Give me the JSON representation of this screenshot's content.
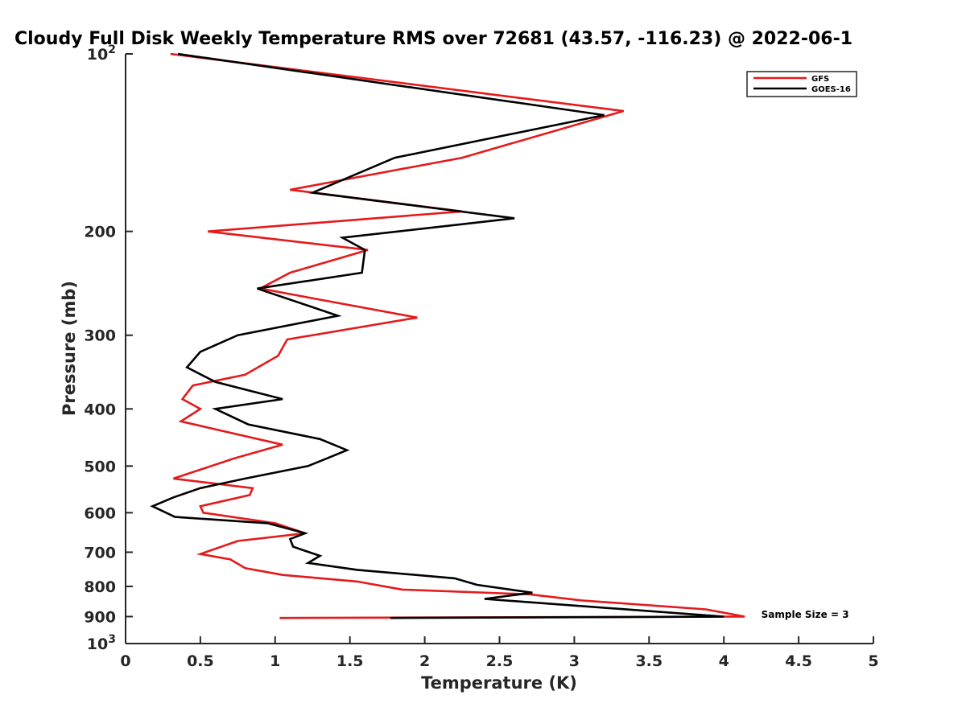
{
  "chart_data": {
    "type": "line",
    "title": "Cloudy Full Disk Weekly Temperature RMS over 72681 (43.57, -116.23) @ 2022-06-1",
    "xlabel": "Temperature (K)",
    "ylabel": "Pressure (mb)",
    "xlim": [
      0,
      5
    ],
    "ylim": [
      100,
      1000
    ],
    "y_scale": "log",
    "y_reversed": true,
    "grid": false,
    "legend_position": "top-right",
    "x_ticks": [
      {
        "value": 0,
        "label": "0"
      },
      {
        "value": 0.5,
        "label": "0.5"
      },
      {
        "value": 1,
        "label": "1"
      },
      {
        "value": 1.5,
        "label": "1.5"
      },
      {
        "value": 2,
        "label": "2"
      },
      {
        "value": 2.5,
        "label": "2.5"
      },
      {
        "value": 3,
        "label": "3"
      },
      {
        "value": 3.5,
        "label": "3.5"
      },
      {
        "value": 4,
        "label": "4"
      },
      {
        "value": 4.5,
        "label": "4.5"
      },
      {
        "value": 5,
        "label": "5"
      }
    ],
    "y_ticks": [
      {
        "value": 100,
        "base": "10",
        "exp": "2"
      },
      {
        "value": 200,
        "base": "200",
        "exp": ""
      },
      {
        "value": 300,
        "base": "300",
        "exp": ""
      },
      {
        "value": 400,
        "base": "400",
        "exp": ""
      },
      {
        "value": 500,
        "base": "500",
        "exp": ""
      },
      {
        "value": 600,
        "base": "600",
        "exp": ""
      },
      {
        "value": 700,
        "base": "700",
        "exp": ""
      },
      {
        "value": 800,
        "base": "800",
        "exp": ""
      },
      {
        "value": 900,
        "base": "900",
        "exp": ""
      },
      {
        "value": 1000,
        "base": "10",
        "exp": "3"
      }
    ],
    "series": [
      {
        "name": "GFS",
        "color": "#e41a1c",
        "points": [
          [
            0.3,
            100
          ],
          [
            3.33,
            125
          ],
          [
            2.25,
            150
          ],
          [
            1.1,
            170
          ],
          [
            2.25,
            185
          ],
          [
            0.55,
            200
          ],
          [
            1.62,
            215
          ],
          [
            1.1,
            235
          ],
          [
            0.9,
            250
          ],
          [
            1.95,
            280
          ],
          [
            1.08,
            305
          ],
          [
            1.02,
            325
          ],
          [
            0.8,
            350
          ],
          [
            0.45,
            365
          ],
          [
            0.38,
            385
          ],
          [
            0.5,
            400
          ],
          [
            0.37,
            420
          ],
          [
            1.05,
            460
          ],
          [
            0.73,
            485
          ],
          [
            0.32,
            525
          ],
          [
            0.85,
            545
          ],
          [
            0.83,
            560
          ],
          [
            0.5,
            585
          ],
          [
            0.52,
            600
          ],
          [
            1.0,
            625
          ],
          [
            1.2,
            650
          ],
          [
            0.75,
            670
          ],
          [
            0.5,
            705
          ],
          [
            0.7,
            720
          ],
          [
            0.8,
            745
          ],
          [
            1.05,
            765
          ],
          [
            1.55,
            785
          ],
          [
            1.85,
            810
          ],
          [
            2.7,
            825
          ],
          [
            3.05,
            845
          ],
          [
            3.88,
            875
          ],
          [
            4.14,
            900
          ],
          [
            1.03,
            905
          ]
        ]
      },
      {
        "name": "GOES-16",
        "color": "#000000",
        "points": [
          [
            0.35,
            100
          ],
          [
            3.2,
            127
          ],
          [
            1.8,
            150
          ],
          [
            1.25,
            172
          ],
          [
            2.6,
            190
          ],
          [
            1.45,
            205
          ],
          [
            1.6,
            215
          ],
          [
            1.58,
            235
          ],
          [
            0.88,
            250
          ],
          [
            1.42,
            278
          ],
          [
            0.75,
            300
          ],
          [
            0.5,
            320
          ],
          [
            0.41,
            340
          ],
          [
            0.6,
            360
          ],
          [
            1.05,
            385
          ],
          [
            0.6,
            400
          ],
          [
            0.82,
            425
          ],
          [
            1.3,
            450
          ],
          [
            1.48,
            470
          ],
          [
            1.35,
            485
          ],
          [
            1.22,
            500
          ],
          [
            0.8,
            525
          ],
          [
            0.5,
            545
          ],
          [
            0.32,
            565
          ],
          [
            0.18,
            585
          ],
          [
            0.33,
            610
          ],
          [
            0.95,
            625
          ],
          [
            1.2,
            650
          ],
          [
            1.1,
            665
          ],
          [
            1.12,
            685
          ],
          [
            1.3,
            710
          ],
          [
            1.22,
            730
          ],
          [
            1.55,
            750
          ],
          [
            2.2,
            775
          ],
          [
            2.35,
            795
          ],
          [
            2.72,
            820
          ],
          [
            2.4,
            840
          ],
          [
            4.0,
            900
          ],
          [
            1.77,
            905
          ]
        ]
      }
    ],
    "annotations": [
      {
        "text": "Sample Size = 3",
        "x": 4.25,
        "y": 905
      }
    ]
  }
}
